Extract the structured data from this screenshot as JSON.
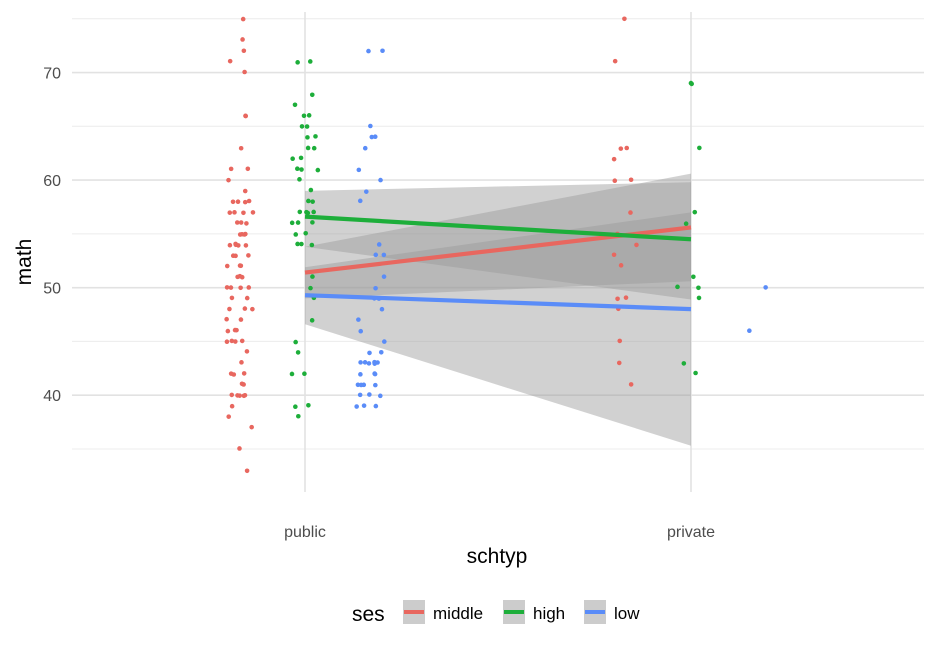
{
  "chart_data": {
    "type": "scatter",
    "xlabel": "schtyp",
    "ylabel": "math",
    "categories": [
      "public",
      "private"
    ],
    "ylim": [
      31,
      76
    ],
    "yticks": [
      40,
      50,
      60,
      70
    ],
    "grid": true,
    "legend": {
      "title": "ses",
      "position": "bottom",
      "entries": [
        "middle",
        "high",
        "low"
      ]
    },
    "colors": {
      "middle": "#E8675F",
      "high": "#1DAE3A",
      "low": "#5A8CF8",
      "band": "#999999"
    },
    "series": [
      {
        "name": "middle",
        "color": "#E8675F",
        "fit": {
          "public": 51.4,
          "private": 55.6
        },
        "ci": {
          "public": [
            49.0,
            53.8
          ],
          "private": [
            50.6,
            60.6
          ]
        },
        "points": [
          [
            "public",
            75
          ],
          [
            "public",
            73
          ],
          [
            "public",
            72
          ],
          [
            "public",
            71
          ],
          [
            "public",
            70
          ],
          [
            "public",
            66
          ],
          [
            "public",
            66
          ],
          [
            "public",
            63
          ],
          [
            "public",
            61
          ],
          [
            "public",
            61
          ],
          [
            "public",
            60
          ],
          [
            "public",
            59
          ],
          [
            "public",
            58
          ],
          [
            "public",
            58
          ],
          [
            "public",
            58
          ],
          [
            "public",
            58
          ],
          [
            "public",
            57
          ],
          [
            "public",
            57
          ],
          [
            "public",
            57
          ],
          [
            "public",
            57
          ],
          [
            "public",
            56
          ],
          [
            "public",
            56
          ],
          [
            "public",
            56
          ],
          [
            "public",
            55
          ],
          [
            "public",
            55
          ],
          [
            "public",
            55
          ],
          [
            "public",
            55
          ],
          [
            "public",
            54
          ],
          [
            "public",
            54
          ],
          [
            "public",
            54
          ],
          [
            "public",
            54
          ],
          [
            "public",
            54
          ],
          [
            "public",
            53
          ],
          [
            "public",
            53
          ],
          [
            "public",
            53
          ],
          [
            "public",
            52
          ],
          [
            "public",
            52
          ],
          [
            "public",
            52
          ],
          [
            "public",
            51
          ],
          [
            "public",
            51
          ],
          [
            "public",
            51
          ],
          [
            "public",
            50
          ],
          [
            "public",
            50
          ],
          [
            "public",
            50
          ],
          [
            "public",
            50
          ],
          [
            "public",
            49
          ],
          [
            "public",
            49
          ],
          [
            "public",
            48
          ],
          [
            "public",
            48
          ],
          [
            "public",
            48
          ],
          [
            "public",
            47
          ],
          [
            "public",
            47
          ],
          [
            "public",
            46
          ],
          [
            "public",
            46
          ],
          [
            "public",
            46
          ],
          [
            "public",
            45
          ],
          [
            "public",
            45
          ],
          [
            "public",
            45
          ],
          [
            "public",
            45
          ],
          [
            "public",
            44
          ],
          [
            "public",
            43
          ],
          [
            "public",
            42
          ],
          [
            "public",
            42
          ],
          [
            "public",
            42
          ],
          [
            "public",
            41
          ],
          [
            "public",
            41
          ],
          [
            "public",
            40
          ],
          [
            "public",
            40
          ],
          [
            "public",
            40
          ],
          [
            "public",
            40
          ],
          [
            "public",
            40
          ],
          [
            "public",
            39
          ],
          [
            "public",
            38
          ],
          [
            "public",
            37
          ],
          [
            "public",
            35
          ],
          [
            "public",
            33
          ],
          [
            "private",
            75
          ],
          [
            "private",
            71
          ],
          [
            "private",
            63
          ],
          [
            "private",
            63
          ],
          [
            "private",
            62
          ],
          [
            "private",
            60
          ],
          [
            "private",
            60
          ],
          [
            "private",
            57
          ],
          [
            "private",
            55
          ],
          [
            "private",
            54
          ],
          [
            "private",
            53
          ],
          [
            "private",
            52
          ],
          [
            "private",
            49
          ],
          [
            "private",
            49
          ],
          [
            "private",
            48
          ],
          [
            "private",
            45
          ],
          [
            "private",
            43
          ],
          [
            "private",
            41
          ]
        ]
      },
      {
        "name": "high",
        "color": "#1DAE3A",
        "fit": {
          "public": 56.6,
          "private": 54.5
        },
        "ci": {
          "public": [
            53.8,
            59.0
          ],
          "private": [
            48.9,
            59.8
          ]
        },
        "points": [
          [
            "public",
            71
          ],
          [
            "public",
            71
          ],
          [
            "public",
            68
          ],
          [
            "public",
            67
          ],
          [
            "public",
            66
          ],
          [
            "public",
            66
          ],
          [
            "public",
            65
          ],
          [
            "public",
            65
          ],
          [
            "public",
            64
          ],
          [
            "public",
            64
          ],
          [
            "public",
            63
          ],
          [
            "public",
            63
          ],
          [
            "public",
            62
          ],
          [
            "public",
            62
          ],
          [
            "public",
            61
          ],
          [
            "public",
            61
          ],
          [
            "public",
            61
          ],
          [
            "public",
            60
          ],
          [
            "public",
            59
          ],
          [
            "public",
            58
          ],
          [
            "public",
            58
          ],
          [
            "public",
            57
          ],
          [
            "public",
            57
          ],
          [
            "public",
            57
          ],
          [
            "public",
            57
          ],
          [
            "public",
            56
          ],
          [
            "public",
            56
          ],
          [
            "public",
            56
          ],
          [
            "public",
            55
          ],
          [
            "public",
            55
          ],
          [
            "public",
            54
          ],
          [
            "public",
            54
          ],
          [
            "public",
            54
          ],
          [
            "public",
            51
          ],
          [
            "public",
            50
          ],
          [
            "public",
            49
          ],
          [
            "public",
            47
          ],
          [
            "public",
            45
          ],
          [
            "public",
            44
          ],
          [
            "public",
            42
          ],
          [
            "public",
            42
          ],
          [
            "public",
            39
          ],
          [
            "public",
            39
          ],
          [
            "public",
            38
          ],
          [
            "private",
            69
          ],
          [
            "private",
            69
          ],
          [
            "private",
            63
          ],
          [
            "private",
            57
          ],
          [
            "private",
            56
          ],
          [
            "private",
            51
          ],
          [
            "private",
            50
          ],
          [
            "private",
            50
          ],
          [
            "private",
            49
          ],
          [
            "private",
            43
          ],
          [
            "private",
            42
          ]
        ]
      },
      {
        "name": "low",
        "color": "#5A8CF8",
        "fit": {
          "public": 49.3,
          "private": 48.0
        },
        "ci": {
          "public": [
            46.6,
            51.9
          ],
          "private": [
            35.3,
            57.0
          ]
        },
        "points": [
          [
            "public",
            72
          ],
          [
            "public",
            72
          ],
          [
            "public",
            65
          ],
          [
            "public",
            64
          ],
          [
            "public",
            64
          ],
          [
            "public",
            63
          ],
          [
            "public",
            61
          ],
          [
            "public",
            60
          ],
          [
            "public",
            59
          ],
          [
            "public",
            58
          ],
          [
            "public",
            54
          ],
          [
            "public",
            53
          ],
          [
            "public",
            53
          ],
          [
            "public",
            51
          ],
          [
            "public",
            50
          ],
          [
            "public",
            49
          ],
          [
            "public",
            49
          ],
          [
            "public",
            48
          ],
          [
            "public",
            47
          ],
          [
            "public",
            46
          ],
          [
            "public",
            45
          ],
          [
            "public",
            44
          ],
          [
            "public",
            44
          ],
          [
            "public",
            43
          ],
          [
            "public",
            43
          ],
          [
            "public",
            43
          ],
          [
            "public",
            43
          ],
          [
            "public",
            43
          ],
          [
            "public",
            43
          ],
          [
            "public",
            42
          ],
          [
            "public",
            42
          ],
          [
            "public",
            42
          ],
          [
            "public",
            41
          ],
          [
            "public",
            41
          ],
          [
            "public",
            41
          ],
          [
            "public",
            41
          ],
          [
            "public",
            40
          ],
          [
            "public",
            40
          ],
          [
            "public",
            40
          ],
          [
            "public",
            39
          ],
          [
            "public",
            39
          ],
          [
            "public",
            39
          ],
          [
            "private",
            50
          ],
          [
            "private",
            46
          ]
        ]
      }
    ]
  }
}
